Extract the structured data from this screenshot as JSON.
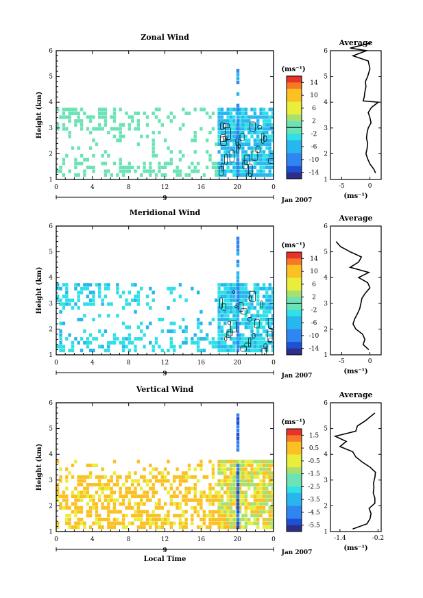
{
  "chart_data": [
    {
      "type": "heatmap",
      "name_key": "zonal",
      "title": "Zonal Wind",
      "ylabel": "Height (km)",
      "xlabel": "",
      "x_ticks": [
        "0",
        "4",
        "8",
        "12",
        "16",
        "20",
        "0"
      ],
      "y_ticks": [
        "1",
        "2",
        "3",
        "4",
        "5",
        "6"
      ],
      "date_label": "9",
      "month_label": "Jan 2007",
      "colorbar": {
        "unit": "(ms⁻¹)",
        "ticks": [
          "14",
          "10",
          "6",
          "2",
          "-2",
          "-6",
          "-10",
          "-14"
        ],
        "range": [
          -16,
          16
        ]
      },
      "profile": {
        "title": "Average",
        "x_ticks": [
          "-5",
          "0"
        ],
        "xlabel": "(ms⁻¹)",
        "xlim": [
          -7,
          2
        ],
        "heights": [
          1.25,
          1.4,
          1.6,
          1.8,
          2.0,
          2.2,
          2.4,
          2.6,
          2.8,
          3.0,
          3.2,
          3.4,
          3.6,
          3.8,
          4.0,
          4.05,
          4.2,
          4.4,
          4.6,
          4.8,
          5.0,
          5.3,
          5.6,
          5.8,
          6.0,
          6.1,
          6.3
        ],
        "values": [
          1.0,
          0.7,
          0.0,
          -0.4,
          -0.7,
          -0.5,
          -0.4,
          -0.6,
          -0.5,
          -0.3,
          0.2,
          0.0,
          -0.3,
          0.3,
          1.5,
          -1.2,
          -1.0,
          -0.9,
          -0.7,
          -0.8,
          -0.4,
          0.0,
          -0.3,
          -3.0,
          -0.6,
          -3.5,
          0.2
        ]
      }
    },
    {
      "type": "heatmap",
      "name_key": "meridional",
      "title": "Meridional Wind",
      "ylabel": "Height (km)",
      "xlabel": "",
      "x_ticks": [
        "0",
        "4",
        "8",
        "12",
        "16",
        "20",
        "0"
      ],
      "y_ticks": [
        "1",
        "2",
        "3",
        "4",
        "5",
        "6"
      ],
      "date_label": "9",
      "month_label": "Jan 2007",
      "colorbar": {
        "unit": "(ms⁻¹)",
        "ticks": [
          "14",
          "10",
          "6",
          "2",
          "-2",
          "-6",
          "-10",
          "-14"
        ],
        "range": [
          -16,
          16
        ]
      },
      "profile": {
        "title": "Average",
        "x_ticks": [
          "-5",
          "0"
        ],
        "xlabel": "(ms⁻¹)",
        "xlim": [
          -7,
          2
        ],
        "heights": [
          1.2,
          1.4,
          1.6,
          1.8,
          2.0,
          2.2,
          2.4,
          2.6,
          2.8,
          3.0,
          3.2,
          3.4,
          3.6,
          3.8,
          4.0,
          4.2,
          4.4,
          4.6,
          4.8,
          5.0,
          5.2,
          5.4
        ],
        "values": [
          -0.2,
          -1.2,
          -0.9,
          -1.3,
          -2.5,
          -3.0,
          -2.7,
          -2.2,
          -1.8,
          -1.6,
          -1.4,
          -0.8,
          0.0,
          -0.4,
          -2.0,
          -0.2,
          -3.5,
          -2.0,
          -1.5,
          -3.5,
          -5.2,
          -6.0
        ]
      }
    },
    {
      "type": "heatmap",
      "name_key": "vertical",
      "title": "Vertical Wind",
      "ylabel": "Height (km)",
      "xlabel": "Local Time",
      "x_ticks": [
        "0",
        "4",
        "8",
        "12",
        "16",
        "20",
        "0"
      ],
      "y_ticks": [
        "1",
        "2",
        "3",
        "4",
        "5",
        "6"
      ],
      "date_label": "9",
      "month_label": "Jan 2007",
      "colorbar": {
        "unit": "(ms⁻¹)",
        "ticks": [
          "1.5",
          "0.5",
          "-0.5",
          "-1.5",
          "-2.5",
          "-3.5",
          "-4.5",
          "-5.5"
        ],
        "range": [
          -6,
          2
        ]
      },
      "profile": {
        "title": "Average",
        "x_ticks": [
          "-1.4",
          "-0.2"
        ],
        "xlabel": "(ms⁻¹)",
        "xlim": [
          -1.7,
          -0.1
        ],
        "heights": [
          1.1,
          1.3,
          1.5,
          1.7,
          1.9,
          2.1,
          2.3,
          2.5,
          2.7,
          2.9,
          3.1,
          3.3,
          3.5,
          3.7,
          3.9,
          4.1,
          4.3,
          4.5,
          4.7,
          4.9,
          5.1,
          5.3,
          5.5,
          5.6
        ],
        "values": [
          -1.0,
          -0.55,
          -0.45,
          -0.42,
          -0.48,
          -0.3,
          -0.3,
          -0.35,
          -0.33,
          -0.34,
          -0.3,
          -0.28,
          -0.45,
          -0.7,
          -0.9,
          -1.0,
          -1.4,
          -1.2,
          -1.55,
          -0.9,
          -0.85,
          -0.6,
          -0.4,
          -0.3
        ]
      }
    }
  ]
}
